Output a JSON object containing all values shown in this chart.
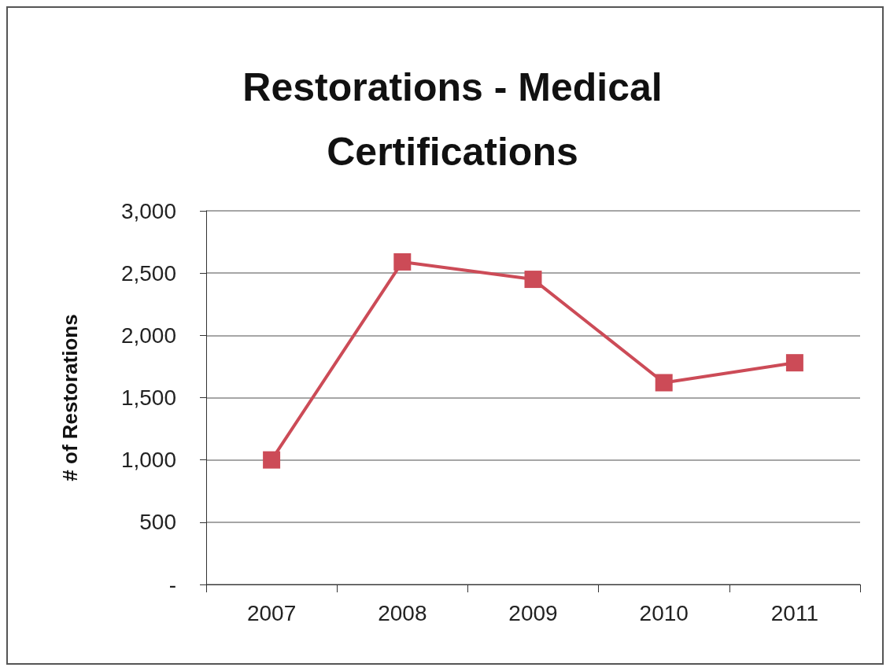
{
  "chart_data": {
    "type": "line",
    "title": "Restorations - Medical\nCertifications",
    "ylabel": "# of Restorations",
    "categories": [
      "2007",
      "2008",
      "2009",
      "2010",
      "2011"
    ],
    "series": [
      {
        "color": "#cc4b57",
        "values": [
          1000,
          2590,
          2450,
          1620,
          1780
        ]
      }
    ],
    "ylim": [
      0,
      3000
    ],
    "yticks": [
      {
        "value": 0,
        "label": "-"
      },
      {
        "value": 500,
        "label": "500"
      },
      {
        "value": 1000,
        "label": "1,000"
      },
      {
        "value": 1500,
        "label": "1,500"
      },
      {
        "value": 2000,
        "label": "2,000"
      },
      {
        "value": 2500,
        "label": "2,500"
      },
      {
        "value": 3000,
        "label": "3,000"
      }
    ],
    "grid": "y",
    "marker": "square"
  }
}
